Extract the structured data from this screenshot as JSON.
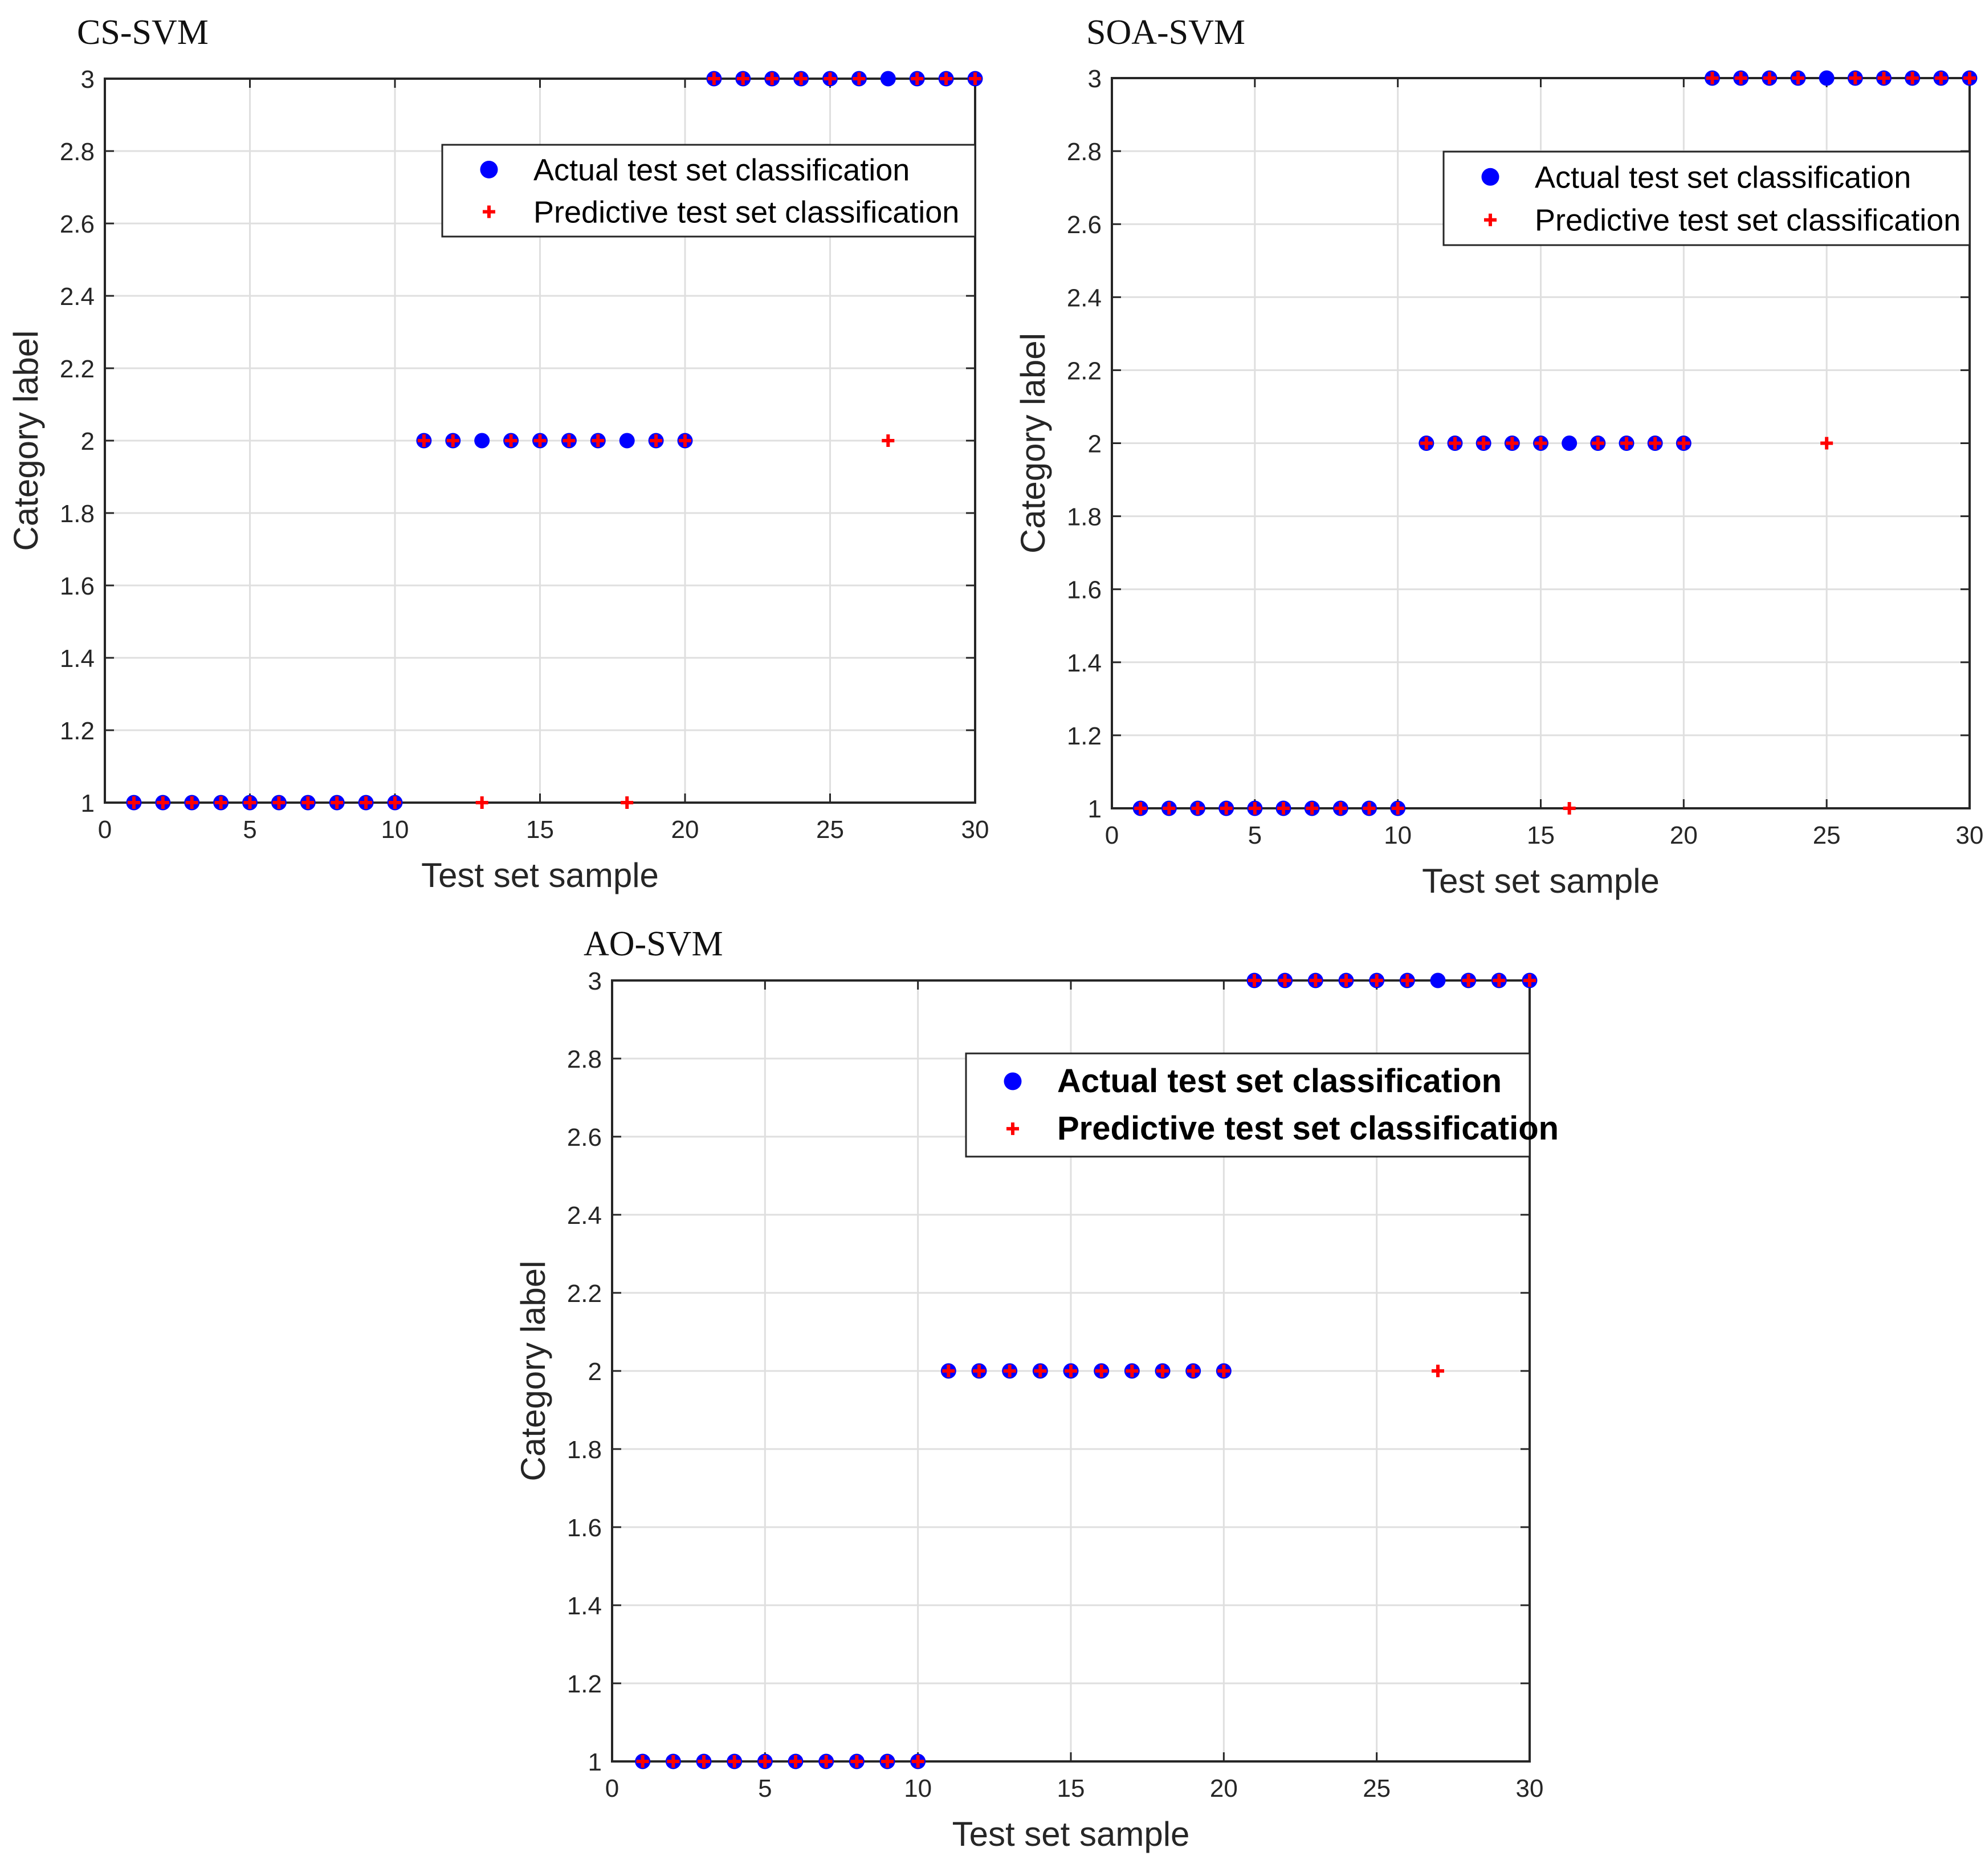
{
  "colors": {
    "actual": "#0000ff",
    "predicted": "#ff0000",
    "axis": "#262626",
    "grid": "#dfdfdf",
    "background": "#ffffff"
  },
  "chart_data": [
    {
      "type": "scatter",
      "title": "CS-SVM",
      "xlabel": "Test set sample",
      "ylabel": "Category label",
      "xlim": [
        0,
        30
      ],
      "ylim": [
        1,
        3
      ],
      "xticks": [
        0,
        5,
        10,
        15,
        20,
        25,
        30
      ],
      "yticks": [
        1,
        1.2,
        1.4,
        1.6,
        1.8,
        2,
        2.2,
        2.4,
        2.6,
        2.8,
        3
      ],
      "grid": true,
      "legend_position": "top-right",
      "series": [
        {
          "name": "Actual test set classification",
          "marker": "filled-circle",
          "x": [
            1,
            2,
            3,
            4,
            5,
            6,
            7,
            8,
            9,
            10,
            11,
            12,
            13,
            14,
            15,
            16,
            17,
            18,
            19,
            20,
            21,
            22,
            23,
            24,
            25,
            26,
            27,
            28,
            29,
            30
          ],
          "y": [
            1,
            1,
            1,
            1,
            1,
            1,
            1,
            1,
            1,
            1,
            2,
            2,
            2,
            2,
            2,
            2,
            2,
            2,
            2,
            2,
            3,
            3,
            3,
            3,
            3,
            3,
            3,
            3,
            3,
            3
          ]
        },
        {
          "name": "Predictive test set classification",
          "marker": "plus",
          "x": [
            1,
            2,
            3,
            4,
            5,
            6,
            7,
            8,
            9,
            10,
            11,
            12,
            13,
            14,
            15,
            16,
            17,
            18,
            19,
            20,
            21,
            22,
            23,
            24,
            25,
            26,
            27,
            28,
            29,
            30
          ],
          "y": [
            1,
            1,
            1,
            1,
            1,
            1,
            1,
            1,
            1,
            1,
            2,
            2,
            1,
            2,
            2,
            2,
            2,
            1,
            2,
            2,
            3,
            3,
            3,
            3,
            3,
            3,
            2,
            3,
            3,
            3
          ]
        }
      ]
    },
    {
      "type": "scatter",
      "title": "SOA-SVM",
      "xlabel": "Test set sample",
      "ylabel": "Category label",
      "xlim": [
        0,
        30
      ],
      "ylim": [
        1,
        3
      ],
      "xticks": [
        0,
        5,
        10,
        15,
        20,
        25,
        30
      ],
      "yticks": [
        1,
        1.2,
        1.4,
        1.6,
        1.8,
        2,
        2.2,
        2.4,
        2.6,
        2.8,
        3
      ],
      "grid": true,
      "legend_position": "top-right",
      "series": [
        {
          "name": "Actual test set classification",
          "marker": "filled-circle",
          "x": [
            1,
            2,
            3,
            4,
            5,
            6,
            7,
            8,
            9,
            10,
            11,
            12,
            13,
            14,
            15,
            16,
            17,
            18,
            19,
            20,
            21,
            22,
            23,
            24,
            25,
            26,
            27,
            28,
            29,
            30
          ],
          "y": [
            1,
            1,
            1,
            1,
            1,
            1,
            1,
            1,
            1,
            1,
            2,
            2,
            2,
            2,
            2,
            2,
            2,
            2,
            2,
            2,
            3,
            3,
            3,
            3,
            3,
            3,
            3,
            3,
            3,
            3
          ]
        },
        {
          "name": "Predictive test set classification",
          "marker": "plus",
          "x": [
            1,
            2,
            3,
            4,
            5,
            6,
            7,
            8,
            9,
            10,
            11,
            12,
            13,
            14,
            15,
            16,
            17,
            18,
            19,
            20,
            21,
            22,
            23,
            24,
            25,
            26,
            27,
            28,
            29,
            30
          ],
          "y": [
            1,
            1,
            1,
            1,
            1,
            1,
            1,
            1,
            1,
            1,
            2,
            2,
            2,
            2,
            2,
            1,
            2,
            2,
            2,
            2,
            3,
            3,
            3,
            3,
            2,
            3,
            3,
            3,
            3,
            3
          ]
        }
      ]
    },
    {
      "type": "scatter",
      "title": "AO-SVM",
      "xlabel": "Test set sample",
      "ylabel": "Category label",
      "xlim": [
        0,
        30
      ],
      "ylim": [
        1,
        3
      ],
      "xticks": [
        0,
        5,
        10,
        15,
        20,
        25,
        30
      ],
      "yticks": [
        1,
        1.2,
        1.4,
        1.6,
        1.8,
        2,
        2.2,
        2.4,
        2.6,
        2.8,
        3
      ],
      "grid": true,
      "legend_position": "top-right",
      "legend_bold": true,
      "series": [
        {
          "name": "Actual test set classification",
          "marker": "filled-circle",
          "x": [
            1,
            2,
            3,
            4,
            5,
            6,
            7,
            8,
            9,
            10,
            11,
            12,
            13,
            14,
            15,
            16,
            17,
            18,
            19,
            20,
            21,
            22,
            23,
            24,
            25,
            26,
            27,
            28,
            29,
            30
          ],
          "y": [
            1,
            1,
            1,
            1,
            1,
            1,
            1,
            1,
            1,
            1,
            2,
            2,
            2,
            2,
            2,
            2,
            2,
            2,
            2,
            2,
            3,
            3,
            3,
            3,
            3,
            3,
            3,
            3,
            3,
            3
          ]
        },
        {
          "name": "Predictive test set classification",
          "marker": "plus",
          "x": [
            1,
            2,
            3,
            4,
            5,
            6,
            7,
            8,
            9,
            10,
            11,
            12,
            13,
            14,
            15,
            16,
            17,
            18,
            19,
            20,
            21,
            22,
            23,
            24,
            25,
            26,
            27,
            28,
            29,
            30
          ],
          "y": [
            1,
            1,
            1,
            1,
            1,
            1,
            1,
            1,
            1,
            1,
            2,
            2,
            2,
            2,
            2,
            2,
            2,
            2,
            2,
            2,
            3,
            3,
            3,
            3,
            3,
            3,
            2,
            3,
            3,
            3
          ]
        }
      ]
    }
  ]
}
